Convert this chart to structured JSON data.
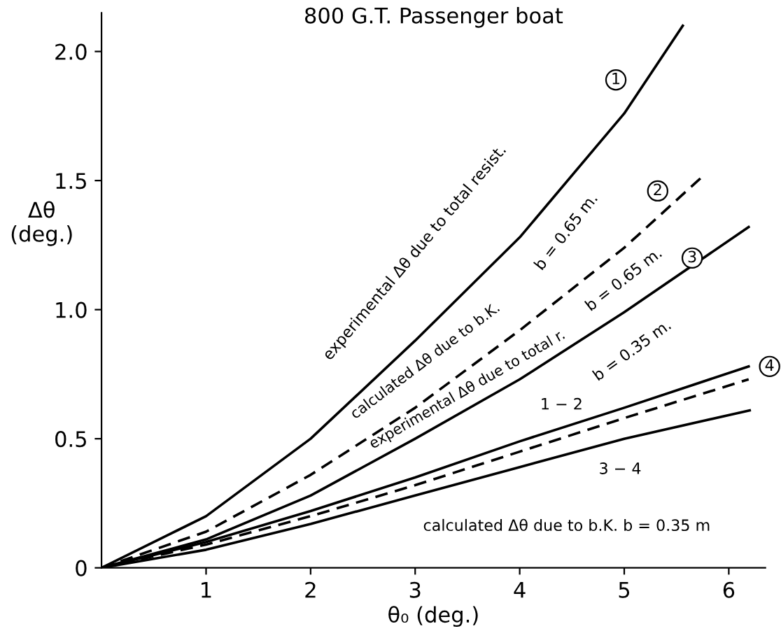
{
  "chart_data": {
    "type": "line",
    "title": "800 G.T. Passenger boat",
    "xlabel": "θ₀ (deg.)",
    "ylabel": "Δθ\n(deg.)",
    "xlim": [
      0,
      6.35
    ],
    "ylim": [
      0,
      2.15
    ],
    "xticks": [
      1,
      2,
      3,
      4,
      5,
      6
    ],
    "yticks": [
      {
        "value": 0,
        "label": "0"
      },
      0.5,
      {
        "value": 1.0,
        "label": "1.0"
      },
      1.5,
      {
        "value": 2.0,
        "label": "2.0"
      }
    ],
    "grid": false,
    "legend": false,
    "marker": "none",
    "series": [
      {
        "x": [
          0,
          1,
          2,
          3,
          4,
          5,
          5.56
        ],
        "values": [
          0,
          0.2,
          0.5,
          0.88,
          1.28,
          1.76,
          2.1
        ],
        "color": "#000000",
        "line_style": "solid"
      },
      {
        "x": [
          0,
          1,
          2,
          3,
          4,
          5,
          5.76
        ],
        "values": [
          0,
          0.14,
          0.36,
          0.62,
          0.92,
          1.24,
          1.52
        ],
        "color": "#000000",
        "line_style": "dashed"
      },
      {
        "x": [
          0,
          1,
          2,
          3,
          4,
          5,
          6.19
        ],
        "values": [
          0,
          0.11,
          0.28,
          0.5,
          0.73,
          0.99,
          1.32
        ],
        "color": "#000000",
        "line_style": "solid"
      },
      {
        "x": [
          0,
          1,
          2,
          3,
          4,
          5,
          6.19
        ],
        "values": [
          0,
          0.1,
          0.22,
          0.35,
          0.49,
          0.62,
          0.78
        ],
        "color": "#000000",
        "line_style": "solid"
      },
      {
        "x": [
          0,
          1,
          2,
          3,
          4,
          5,
          6.19
        ],
        "values": [
          0,
          0.09,
          0.2,
          0.32,
          0.45,
          0.58,
          0.73
        ],
        "color": "#000000",
        "line_style": "dashed"
      },
      {
        "x": [
          0,
          1,
          2,
          3,
          4,
          5,
          6.2
        ],
        "values": [
          0,
          0.07,
          0.17,
          0.28,
          0.39,
          0.5,
          0.61
        ],
        "color": "#000000",
        "line_style": "solid"
      }
    ],
    "annotations": [
      "experimental Δθ due to total resist.",
      "b = 0.65 m.",
      "calculated Δθ due to b.K.",
      "b = 0.65 m.",
      "experimental Δθ due to total r.",
      "b = 0.35 m.",
      "calculated Δθ due to b.K. b = 0.35 m",
      "1",
      "2",
      "3",
      "4",
      "1 − 2",
      "3 − 4"
    ]
  }
}
